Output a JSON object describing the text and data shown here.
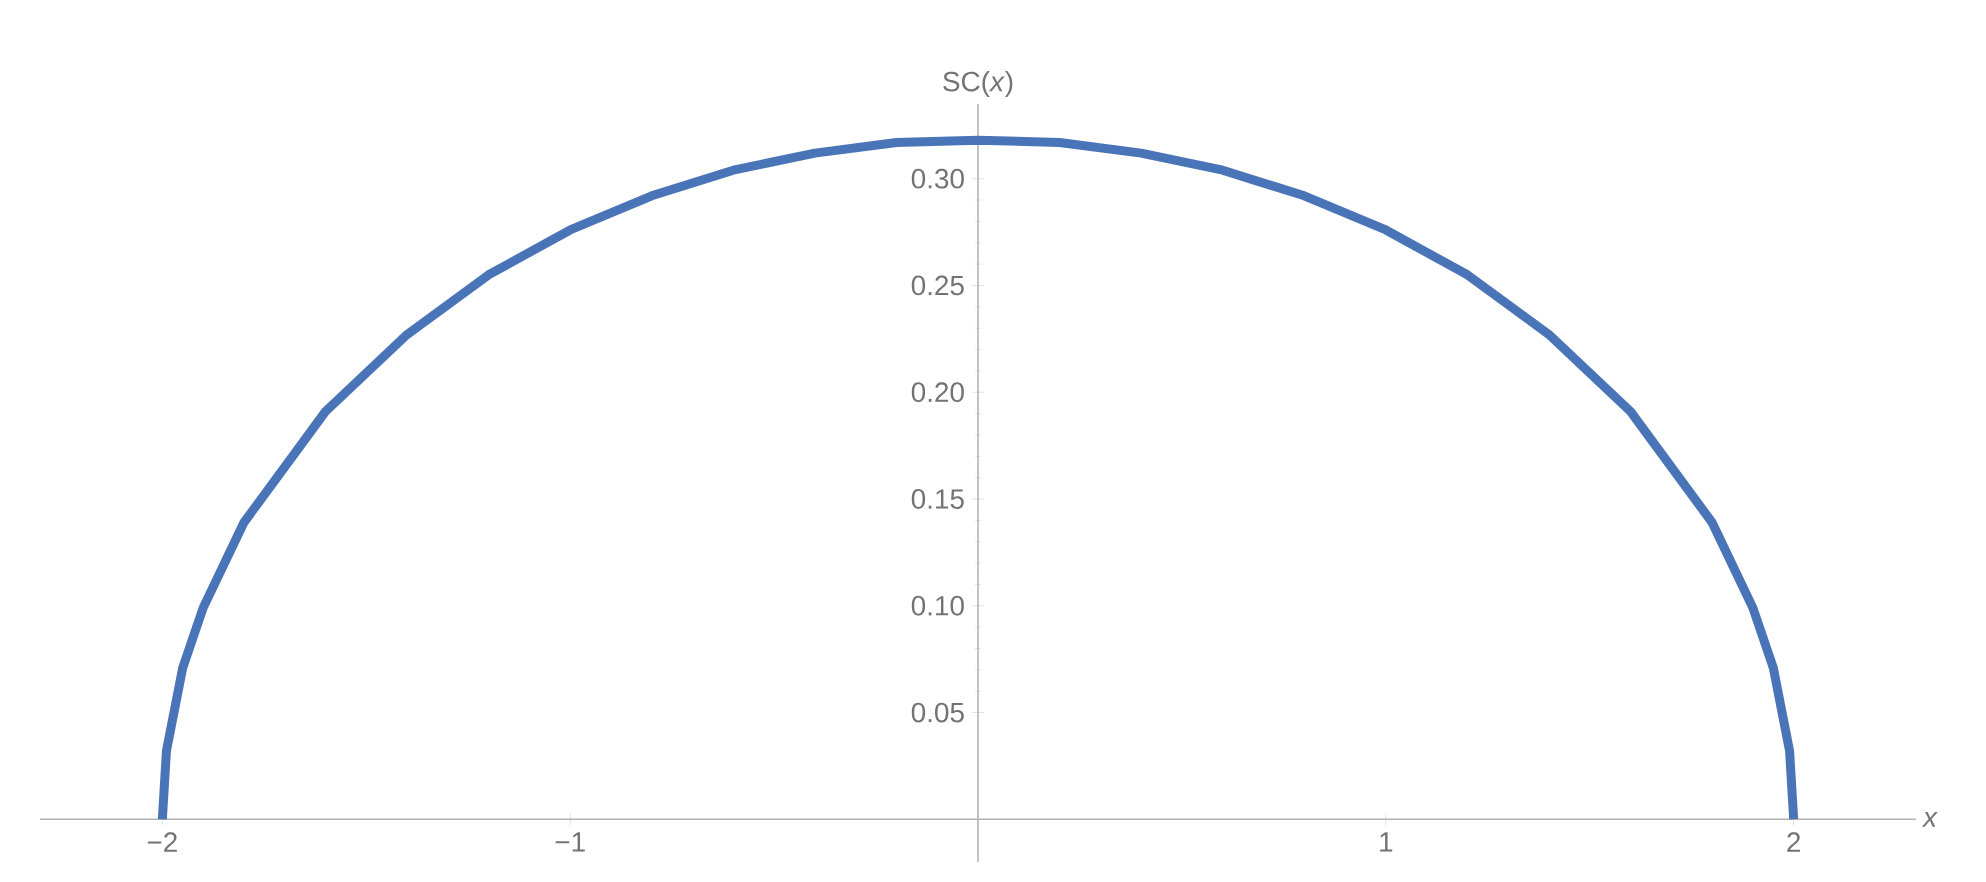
{
  "chart_data": {
    "type": "line",
    "xlabel": "*x*",
    "ylabel": "SC(*x*)",
    "x": [
      -2,
      -1.99,
      -1.95,
      -1.9,
      -1.8,
      -1.6,
      -1.4,
      -1.2,
      -1,
      -0.8,
      -0.6,
      -0.4,
      -0.2,
      0,
      0.2,
      0.4,
      0.6,
      0.8,
      1,
      1.2,
      1.4,
      1.6,
      1.8,
      1.9,
      1.95,
      1.99,
      2
    ],
    "series": [
      {
        "color": "#4a74b8",
        "values": [
          0,
          0.032,
          0.071,
          0.099,
          0.139,
          0.191,
          0.227,
          0.255,
          0.276,
          0.292,
          0.304,
          0.312,
          0.317,
          0.318,
          0.317,
          0.312,
          0.304,
          0.292,
          0.276,
          0.255,
          0.227,
          0.191,
          0.139,
          0.099,
          0.071,
          0.032,
          0
        ]
      }
    ],
    "xlim": [
      -2.3,
      2.3
    ],
    "ylim": [
      -0.02,
      0.335
    ],
    "xticks": [
      {
        "value": -2,
        "label": "−2"
      },
      {
        "value": -1,
        "label": "−1"
      },
      1,
      2
    ],
    "yticks": [
      0.05,
      {
        "value": 0.1,
        "label": "0.10"
      },
      0.15,
      {
        "value": 0.2,
        "label": "0.20"
      },
      0.25,
      {
        "value": 0.3,
        "label": "0.30"
      }
    ],
    "grid": false
  }
}
